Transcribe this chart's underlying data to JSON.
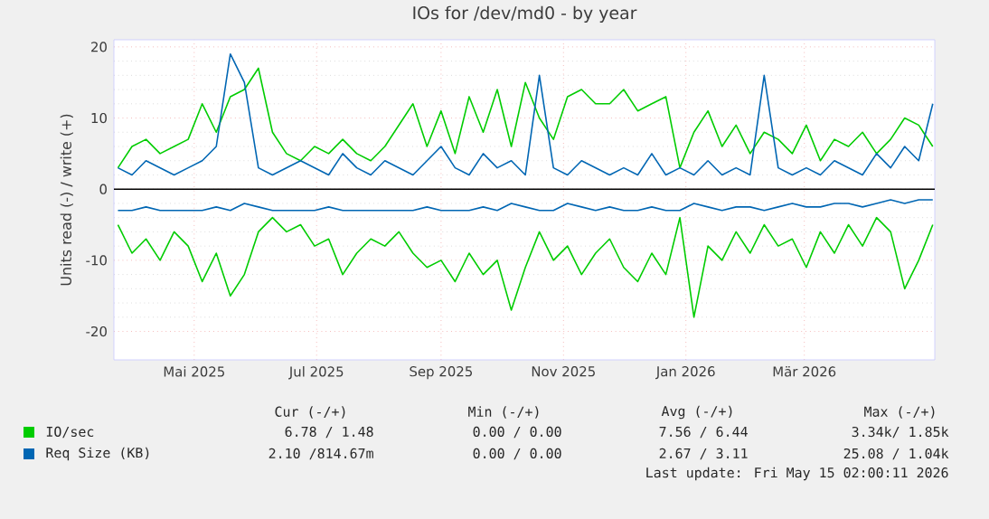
{
  "chart_data": {
    "type": "line",
    "title": "IOs for /dev/md0 - by year",
    "ylabel": "Units read (-) / write (+)",
    "x": [
      "2025-03-24",
      "2025-03-31",
      "2025-04-07",
      "2025-04-14",
      "2025-04-21",
      "2025-04-28",
      "2025-05-05",
      "2025-05-12",
      "2025-05-19",
      "2025-05-26",
      "2025-06-02",
      "2025-06-09",
      "2025-06-16",
      "2025-06-23",
      "2025-06-30",
      "2025-07-07",
      "2025-07-14",
      "2025-07-21",
      "2025-07-28",
      "2025-08-04",
      "2025-08-11",
      "2025-08-18",
      "2025-08-25",
      "2025-09-01",
      "2025-09-08",
      "2025-09-15",
      "2025-09-22",
      "2025-09-29",
      "2025-10-06",
      "2025-10-13",
      "2025-10-20",
      "2025-10-27",
      "2025-11-03",
      "2025-11-10",
      "2025-11-17",
      "2025-11-24",
      "2025-12-01",
      "2025-12-08",
      "2025-12-15",
      "2025-12-22",
      "2025-12-29",
      "2026-01-05",
      "2026-01-12",
      "2026-01-19",
      "2026-01-26",
      "2026-02-02",
      "2026-02-09",
      "2026-02-16",
      "2026-02-23",
      "2026-03-02",
      "2026-03-09",
      "2026-03-16",
      "2026-03-23",
      "2026-03-30",
      "2026-04-06",
      "2026-04-13",
      "2026-04-20",
      "2026-04-27",
      "2026-05-04"
    ],
    "series": [
      {
        "name": "IO/sec",
        "color": "#00cc00",
        "values": [
          3,
          6,
          7,
          5,
          6,
          7,
          12,
          8,
          13,
          14,
          17,
          8,
          5,
          4,
          6,
          5,
          7,
          5,
          4,
          6,
          9,
          12,
          6,
          11,
          5,
          13,
          8,
          14,
          6,
          15,
          10,
          7,
          13,
          14,
          12,
          12,
          14,
          11,
          12,
          13,
          3,
          8,
          11,
          6,
          9,
          5,
          8,
          7,
          5,
          9,
          4,
          7,
          6,
          8,
          5,
          7,
          10,
          9,
          6
        ]
      },
      {
        "color": "#00cc00",
        "values": [
          -5,
          -9,
          -7,
          -10,
          -6,
          -8,
          -13,
          -9,
          -15,
          -12,
          -6,
          -4,
          -6,
          -5,
          -8,
          -7,
          -12,
          -9,
          -7,
          -8,
          -6,
          -9,
          -11,
          -10,
          -13,
          -9,
          -12,
          -10,
          -17,
          -11,
          -6,
          -10,
          -8,
          -12,
          -9,
          -7,
          -11,
          -13,
          -9,
          -12,
          -4,
          -18,
          -8,
          -10,
          -6,
          -9,
          -5,
          -8,
          -7,
          -11,
          -6,
          -9,
          -5,
          -8,
          -4,
          -6,
          -14,
          -10,
          -5
        ]
      },
      {
        "name": "Req Size (KB)",
        "color": "#0066b3",
        "values": [
          3,
          2,
          4,
          3,
          2,
          3,
          4,
          6,
          19,
          15,
          3,
          2,
          3,
          4,
          3,
          2,
          5,
          3,
          2,
          4,
          3,
          2,
          4,
          6,
          3,
          2,
          5,
          3,
          4,
          2,
          16,
          3,
          2,
          4,
          3,
          2,
          3,
          2,
          5,
          2,
          3,
          2,
          4,
          2,
          3,
          2,
          16,
          3,
          2,
          3,
          2,
          4,
          3,
          2,
          5,
          3,
          6,
          4,
          12
        ]
      },
      {
        "color": "#0066b3",
        "values": [
          -3,
          -3,
          -2.5,
          -3,
          -3,
          -3,
          -3,
          -2.5,
          -3,
          -2,
          -2.5,
          -3,
          -3,
          -3,
          -3,
          -2.5,
          -3,
          -3,
          -3,
          -3,
          -3,
          -3,
          -2.5,
          -3,
          -3,
          -3,
          -2.5,
          -3,
          -2,
          -2.5,
          -3,
          -3,
          -2,
          -2.5,
          -3,
          -2.5,
          -3,
          -3,
          -2.5,
          -3,
          -3,
          -2,
          -2.5,
          -3,
          -2.5,
          -2.5,
          -3,
          -2.5,
          -2,
          -2.5,
          -2.5,
          -2,
          -2,
          -2.5,
          -2,
          -1.5,
          -2,
          -1.5,
          -1.5
        ]
      }
    ],
    "xlim": [
      "2025-03-22",
      "2026-05-05"
    ],
    "xticks": [
      {
        "value": "2025-05-01",
        "label": "Mai 2025"
      },
      {
        "value": "2025-07-01",
        "label": "Jul 2025"
      },
      {
        "value": "2025-09-01",
        "label": "Sep 2025"
      },
      {
        "value": "2025-11-01",
        "label": "Nov 2025"
      },
      {
        "value": "2026-01-01",
        "label": "Jan 2026"
      },
      {
        "value": "2026-03-01",
        "label": "Mär 2026"
      }
    ],
    "ylim": [
      -24,
      21
    ],
    "yticks": [
      -20,
      -10,
      0,
      10,
      20
    ],
    "ref_lines": [
      {
        "axis": "y",
        "value": 0,
        "color": "#000000"
      }
    ],
    "grid": true,
    "legend": "bottom",
    "marker": "none",
    "line_style": "solid",
    "annotations": [
      "Cur (-/+)",
      "Min (-/+)",
      "Avg (-/+)",
      "Max (-/+)",
      "6.78 / 1.48",
      "0.00 / 0.00",
      "7.56 / 6.44",
      "3.34k/ 1.85k",
      "2.10 /814.67m",
      "0.00 / 0.00",
      "2.67 / 3.11",
      "25.08 / 1.04k",
      "Last update: Fri May 15 02:00:11 2026"
    ]
  }
}
